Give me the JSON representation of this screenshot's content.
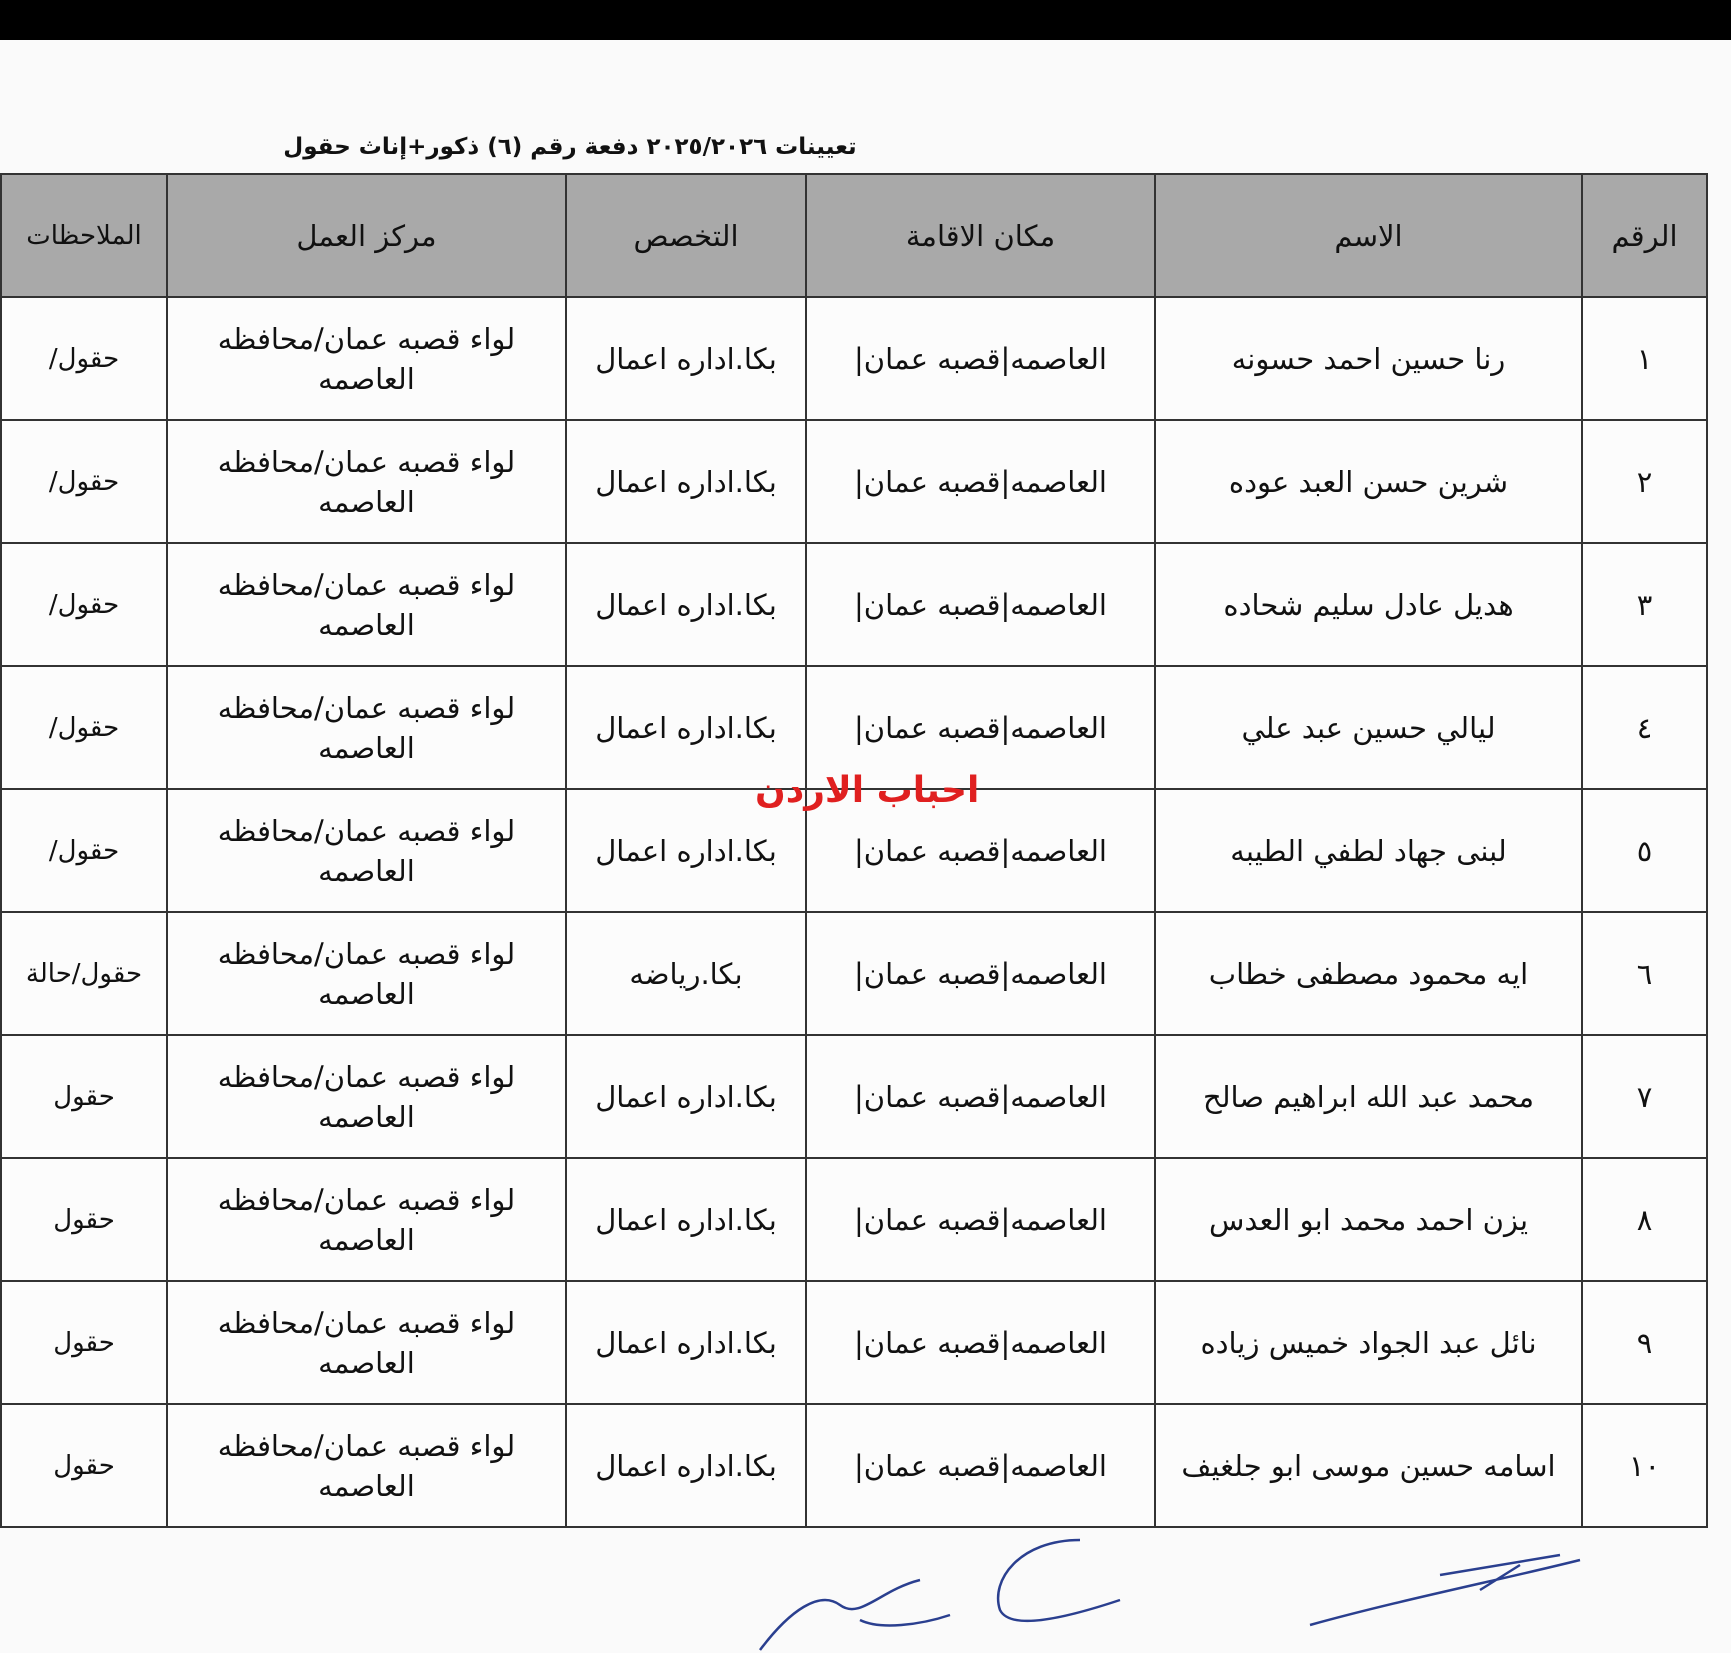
{
  "title": "تعيينات ٢٠٢٥/٢٠٢٦ دفعة رقم (٦) ذكور+إناث حقول",
  "watermark": "احباب الاردن",
  "table": {
    "headers": [
      "الرقم",
      "الاسم",
      "مكان الاقامة",
      "التخصص",
      "مركز العمل",
      "الملاحظات"
    ],
    "rows": [
      {
        "no": "١",
        "name": "رنا حسين احمد حسونه",
        "residence": "العاصمه|قصبه عمان|",
        "major": "بكا.اداره اعمال",
        "work_line1": "لواء قصبه عمان/محافظه",
        "work_line2": "العاصمه",
        "notes": "حقول/"
      },
      {
        "no": "٢",
        "name": "شرين حسن العبد عوده",
        "residence": "العاصمه|قصبه عمان|",
        "major": "بكا.اداره اعمال",
        "work_line1": "لواء قصبه عمان/محافظه",
        "work_line2": "العاصمه",
        "notes": "حقول/"
      },
      {
        "no": "٣",
        "name": "هديل عادل سليم شحاده",
        "residence": "العاصمه|قصبه عمان|",
        "major": "بكا.اداره اعمال",
        "work_line1": "لواء قصبه عمان/محافظه",
        "work_line2": "العاصمه",
        "notes": "حقول/"
      },
      {
        "no": "٤",
        "name": "ليالي حسين عبد علي",
        "residence": "العاصمه|قصبه عمان|",
        "major": "بكا.اداره اعمال",
        "work_line1": "لواء قصبه عمان/محافظه",
        "work_line2": "العاصمه",
        "notes": "حقول/"
      },
      {
        "no": "٥",
        "name": "لبنى جهاد لطفي الطيبه",
        "residence": "العاصمه|قصبه عمان|",
        "major": "بكا.اداره اعمال",
        "work_line1": "لواء قصبه عمان/محافظه",
        "work_line2": "العاصمه",
        "notes": "حقول/"
      },
      {
        "no": "٦",
        "name": "ايه محمود مصطفى خطاب",
        "residence": "العاصمه|قصبه عمان|",
        "major": "بكا.رياضه",
        "work_line1": "لواء قصبه عمان/محافظه",
        "work_line2": "العاصمه",
        "notes": "حقول/حالة"
      },
      {
        "no": "٧",
        "name": "محمد عبد الله ابراهيم صالح",
        "residence": "العاصمه|قصبه عمان|",
        "major": "بكا.اداره اعمال",
        "work_line1": "لواء قصبه عمان/محافظه",
        "work_line2": "العاصمه",
        "notes": "حقول"
      },
      {
        "no": "٨",
        "name": "يزن احمد محمد ابو العدس",
        "residence": "العاصمه|قصبه عمان|",
        "major": "بكا.اداره اعمال",
        "work_line1": "لواء قصبه عمان/محافظه",
        "work_line2": "العاصمه",
        "notes": "حقول"
      },
      {
        "no": "٩",
        "name": "نائل عبد الجواد خميس زياده",
        "residence": "العاصمه|قصبه عمان|",
        "major": "بكا.اداره اعمال",
        "work_line1": "لواء قصبه عمان/محافظه",
        "work_line2": "العاصمه",
        "notes": "حقول"
      },
      {
        "no": "١٠",
        "name": "اسامه حسين موسى ابو جلغيف",
        "residence": "العاصمه|قصبه عمان|",
        "major": "بكا.اداره اعمال",
        "work_line1": "لواء قصبه عمان/محافظه",
        "work_line2": "العاصمه",
        "notes": "حقول"
      }
    ]
  },
  "colors": {
    "header_bg": "#a9a9a9",
    "watermark": "#e02020",
    "signature": "#2a3f8f"
  }
}
